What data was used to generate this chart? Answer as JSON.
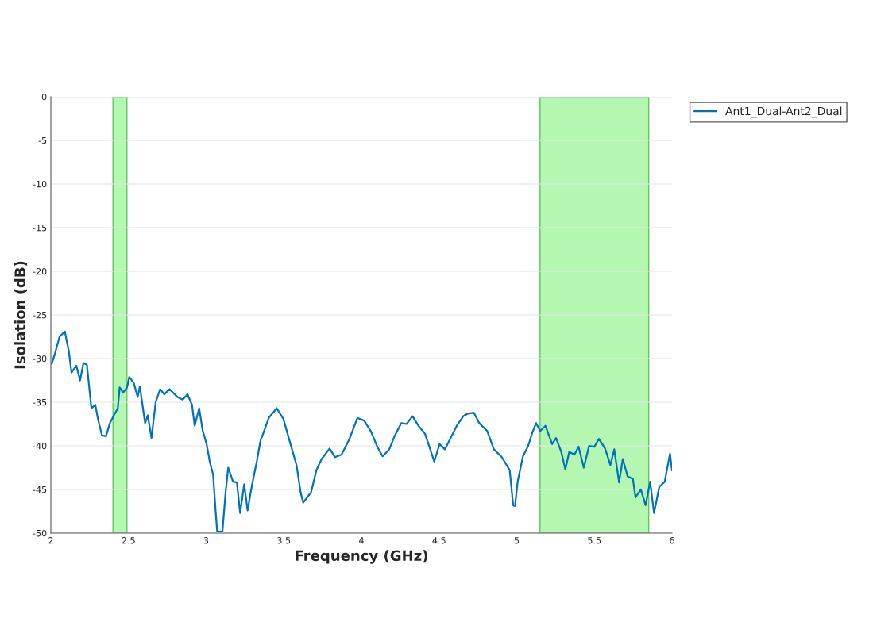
{
  "chart_data": {
    "type": "line",
    "xlabel": "Frequency (GHz)",
    "ylabel": "Isolation (dB)",
    "xlim": [
      2,
      6
    ],
    "ylim": [
      -50,
      0
    ],
    "xticks": [
      2,
      2.5,
      3,
      3.5,
      4,
      4.5,
      5,
      5.5,
      6
    ],
    "yticks": [
      -50,
      -45,
      -40,
      -35,
      -30,
      -25,
      -20,
      -15,
      -10,
      -5,
      0
    ],
    "grid": "y",
    "legend": "top right",
    "line_style": "solid",
    "bands": [
      {
        "axis": "x",
        "from": 2.4,
        "to": 2.49,
        "color": "#b3f7b0"
      },
      {
        "axis": "x",
        "from": 5.15,
        "to": 5.85,
        "color": "#b3f7b0"
      }
    ],
    "series": [
      {
        "name": "Ant1_Dual-Ant2_Dual",
        "color": "#0072bd",
        "x": [
          2.005,
          2.022,
          2.056,
          2.09,
          2.116,
          2.133,
          2.164,
          2.188,
          2.21,
          2.232,
          2.261,
          2.286,
          2.303,
          2.329,
          2.355,
          2.38,
          2.406,
          2.431,
          2.443,
          2.465,
          2.491,
          2.505,
          2.534,
          2.559,
          2.573,
          2.607,
          2.624,
          2.648,
          2.675,
          2.704,
          2.73,
          2.764,
          2.815,
          2.849,
          2.88,
          2.909,
          2.926,
          2.955,
          2.977,
          3.003,
          3.023,
          3.045,
          3.062,
          3.071,
          3.105,
          3.125,
          3.142,
          3.173,
          3.198,
          3.219,
          3.245,
          3.267,
          3.293,
          3.326,
          3.352,
          3.361,
          3.403,
          3.454,
          3.497,
          3.548,
          3.582,
          3.608,
          3.625,
          3.676,
          3.71,
          3.744,
          3.795,
          3.83,
          3.872,
          3.923,
          3.974,
          4.017,
          4.06,
          4.102,
          4.136,
          4.179,
          4.213,
          4.256,
          4.29,
          4.329,
          4.367,
          4.409,
          4.443,
          4.469,
          4.503,
          4.537,
          4.58,
          4.614,
          4.656,
          4.687,
          4.724,
          4.759,
          4.81,
          4.853,
          4.904,
          4.955,
          4.977,
          4.989,
          5.006,
          5.04,
          5.074,
          5.1,
          5.125,
          5.151,
          5.185,
          5.228,
          5.253,
          5.287,
          5.313,
          5.338,
          5.372,
          5.398,
          5.432,
          5.466,
          5.5,
          5.529,
          5.569,
          5.603,
          5.628,
          5.659,
          5.683,
          5.714,
          5.748,
          5.765,
          5.799,
          5.83,
          5.859,
          5.884,
          5.918,
          5.953,
          5.987,
          6.0
        ],
        "values": [
          -30.6,
          -29.7,
          -27.5,
          -26.9,
          -29.2,
          -31.6,
          -30.8,
          -32.5,
          -30.5,
          -30.7,
          -35.7,
          -35.3,
          -36.9,
          -38.8,
          -38.9,
          -37.4,
          -36.5,
          -35.7,
          -33.3,
          -33.9,
          -33.3,
          -32.1,
          -32.8,
          -34.4,
          -33.2,
          -37.4,
          -36.5,
          -39.1,
          -35.0,
          -33.5,
          -34.1,
          -33.5,
          -34.4,
          -34.7,
          -34.1,
          -35.3,
          -37.7,
          -35.7,
          -38.2,
          -39.8,
          -41.8,
          -43.3,
          -47.7,
          -49.8,
          -49.8,
          -45.4,
          -42.5,
          -44.1,
          -44.2,
          -47.7,
          -44.4,
          -47.4,
          -44.7,
          -41.8,
          -39.2,
          -38.9,
          -36.8,
          -35.7,
          -36.9,
          -40.1,
          -42.2,
          -45.3,
          -46.5,
          -45.3,
          -42.8,
          -41.5,
          -40.3,
          -41.3,
          -41.0,
          -39.2,
          -36.8,
          -37.1,
          -38.3,
          -40.1,
          -41.2,
          -40.4,
          -38.9,
          -37.4,
          -37.5,
          -36.6,
          -37.7,
          -38.6,
          -40.4,
          -41.8,
          -39.8,
          -40.4,
          -38.9,
          -37.7,
          -36.6,
          -36.3,
          -36.2,
          -37.4,
          -38.3,
          -40.4,
          -41.3,
          -42.8,
          -46.8,
          -46.9,
          -44.1,
          -41.2,
          -40.0,
          -38.5,
          -37.4,
          -38.3,
          -37.7,
          -39.8,
          -39.1,
          -40.7,
          -42.7,
          -40.7,
          -41.0,
          -40.1,
          -42.5,
          -40.0,
          -40.1,
          -39.2,
          -40.3,
          -42.2,
          -40.4,
          -44.2,
          -41.5,
          -43.5,
          -43.8,
          -45.9,
          -45.0,
          -46.8,
          -44.1,
          -47.7,
          -44.7,
          -44.1,
          -40.9,
          -42.8
        ]
      }
    ]
  }
}
